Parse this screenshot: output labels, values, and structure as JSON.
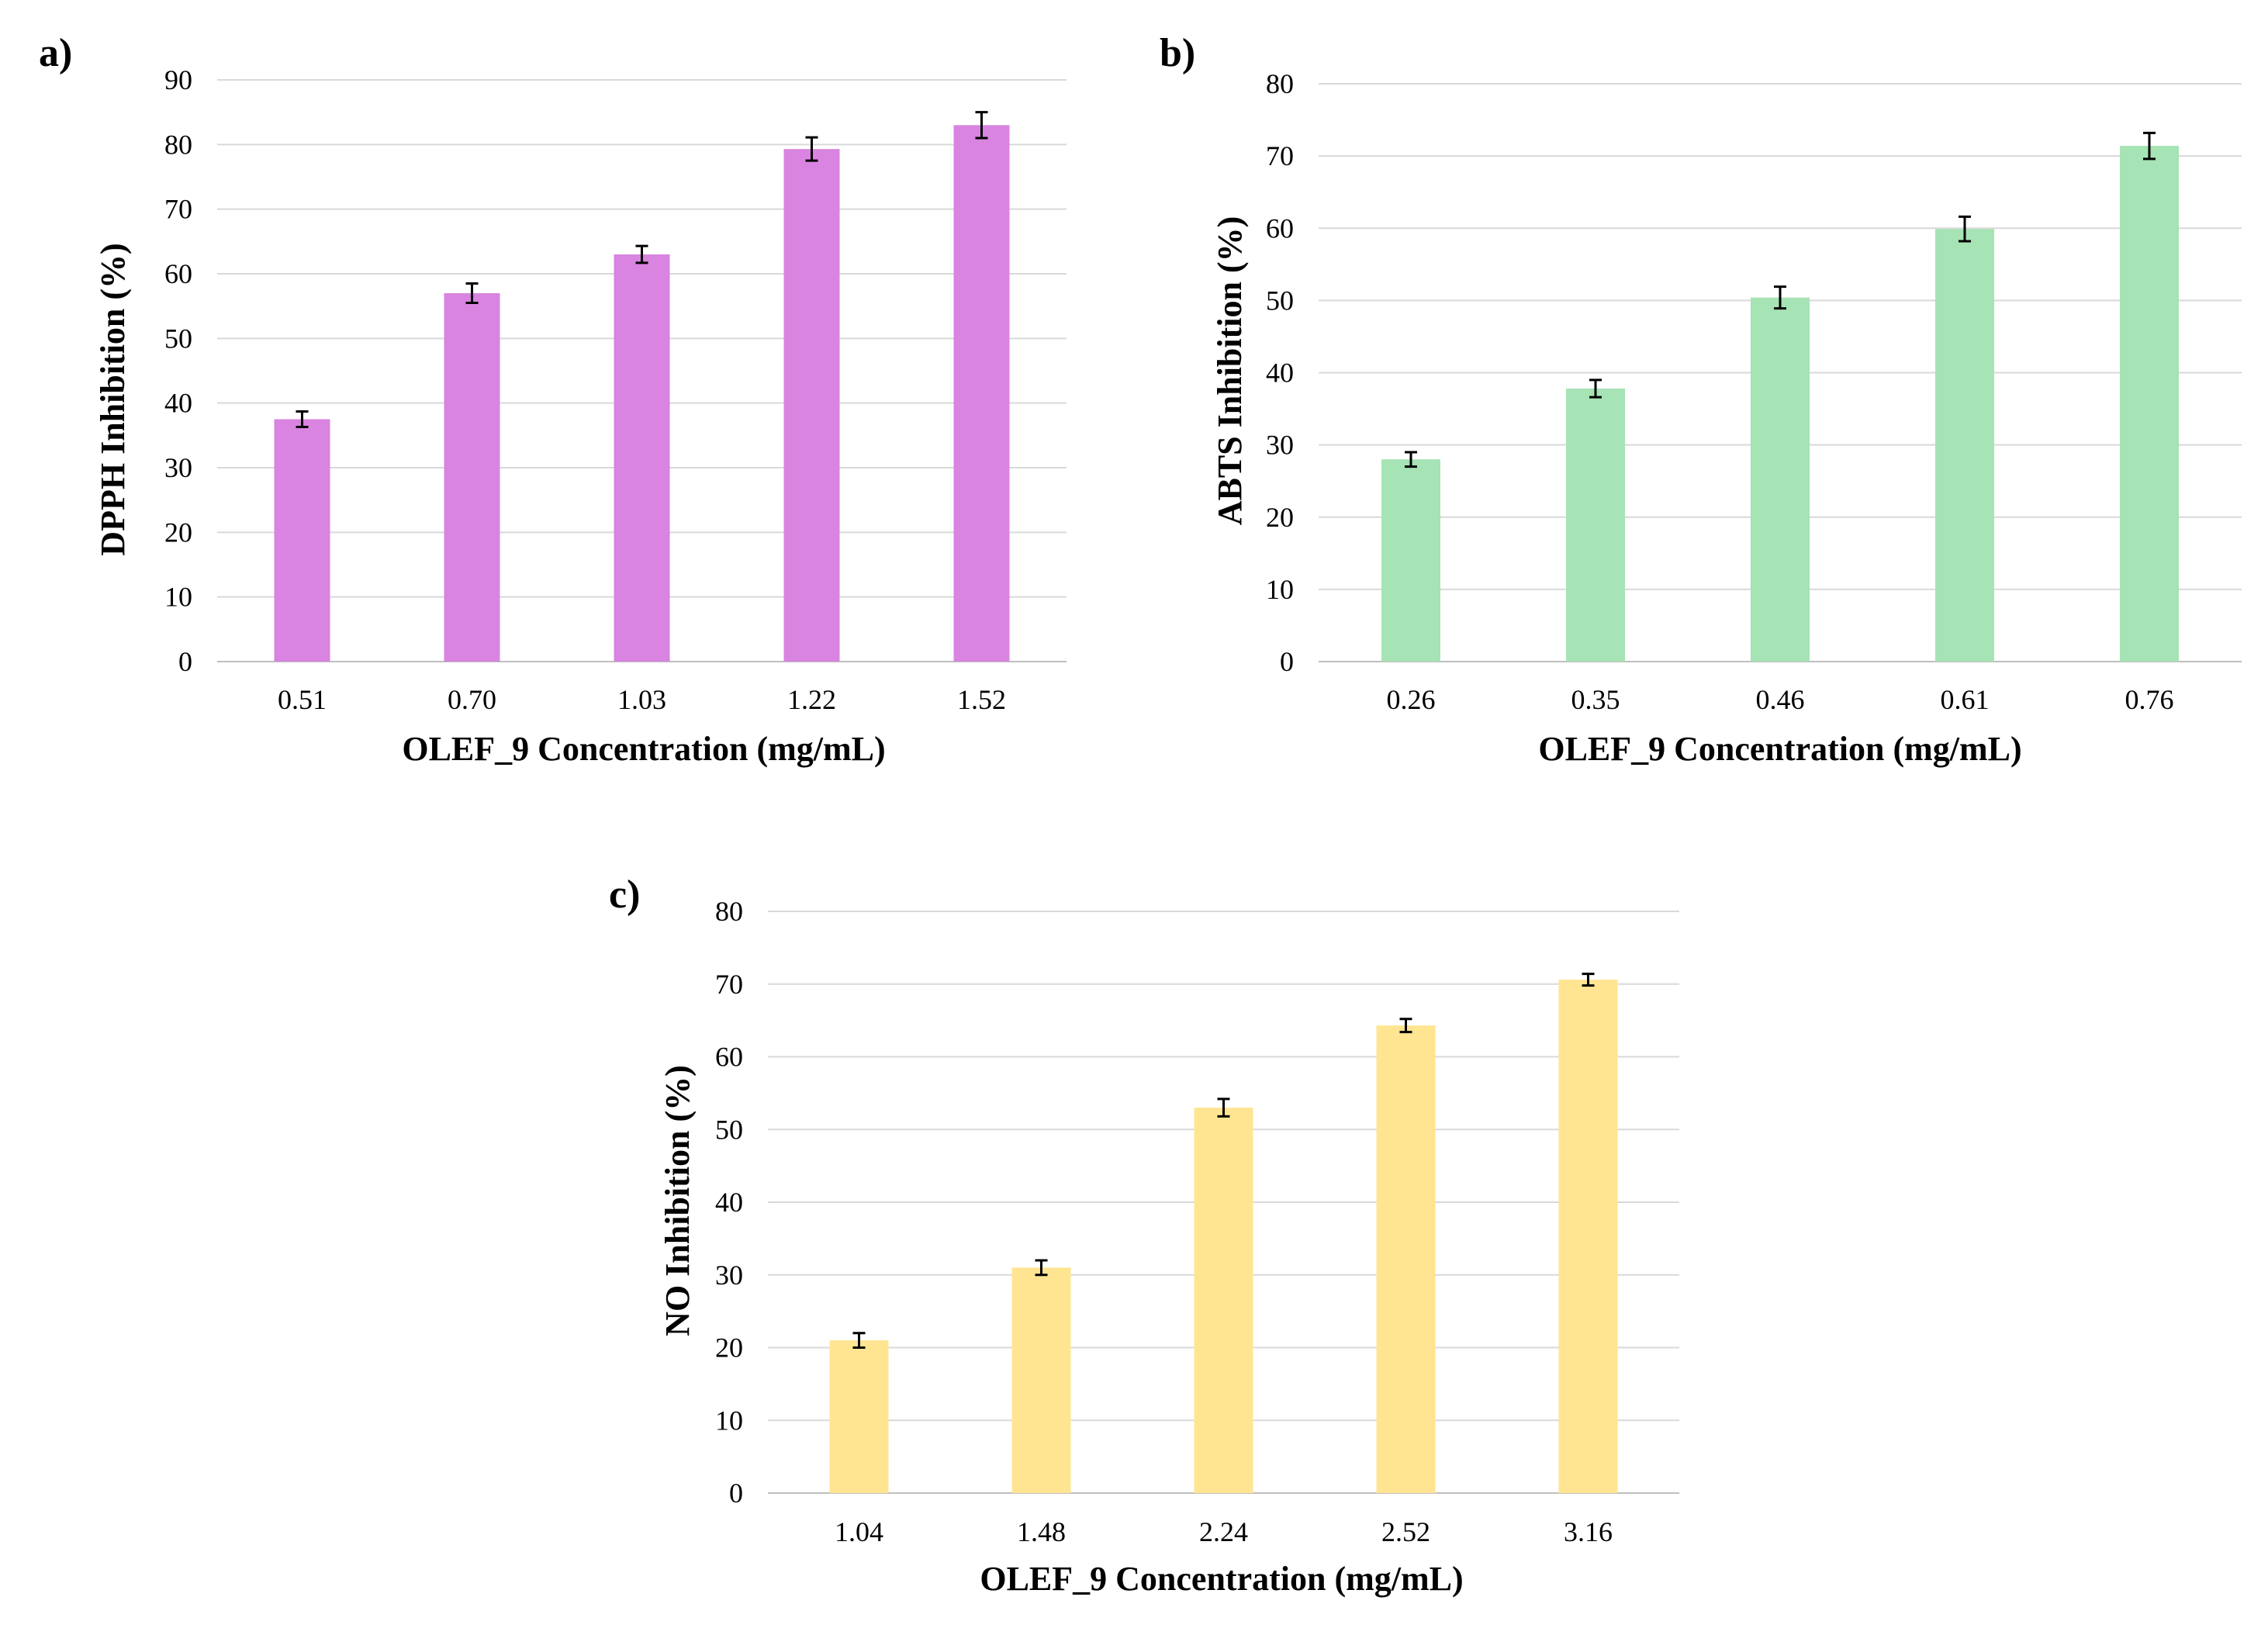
{
  "chart_data": [
    {
      "panel_label": "a)",
      "type": "bar",
      "categories": [
        "0.51",
        "0.70",
        "1.03",
        "1.22",
        "1.52"
      ],
      "values": [
        37.5,
        57.0,
        63.0,
        79.3,
        83.0
      ],
      "errors": [
        1.2,
        1.5,
        1.3,
        1.8,
        2.0
      ],
      "color": "#d884e0",
      "xlabel": "OLEF_9 Concentration  (mg/mL)",
      "ylabel": "DPPH Inhibition (%)",
      "ylim": [
        0,
        90
      ],
      "yticks": [
        "0",
        "10",
        "20",
        "30",
        "40",
        "50",
        "60",
        "70",
        "80",
        "90"
      ],
      "grid": true
    },
    {
      "panel_label": "b)",
      "type": "bar",
      "categories": [
        "0.26",
        "0.35",
        "0.46",
        "0.61",
        "0.76"
      ],
      "values": [
        28.0,
        37.8,
        50.4,
        59.9,
        71.4
      ],
      "errors": [
        1.0,
        1.2,
        1.5,
        1.7,
        1.8
      ],
      "color": "#a6e3b5",
      "xlabel": "OLEF_9 Concentration  (mg/mL)",
      "ylabel": "ABTS Inhibition (%)",
      "ylim": [
        0,
        80
      ],
      "yticks": [
        "0",
        "10",
        "20",
        "30",
        "40",
        "50",
        "60",
        "70",
        "80"
      ],
      "grid": true
    },
    {
      "panel_label": "c)",
      "type": "bar",
      "categories": [
        "1.04",
        "1.48",
        "2.24",
        "2.52",
        "3.16"
      ],
      "values": [
        21.0,
        31.0,
        53.0,
        64.3,
        70.6
      ],
      "errors": [
        1.0,
        1.0,
        1.2,
        0.9,
        0.8
      ],
      "color": "#ffe592",
      "xlabel": "OLEF_9 Concentration  (mg/mL)",
      "ylabel": "NO Inhibition (%)",
      "ylim": [
        0,
        80
      ],
      "yticks": [
        "0",
        "10",
        "20",
        "30",
        "40",
        "50",
        "60",
        "70",
        "80"
      ],
      "grid": true
    }
  ]
}
